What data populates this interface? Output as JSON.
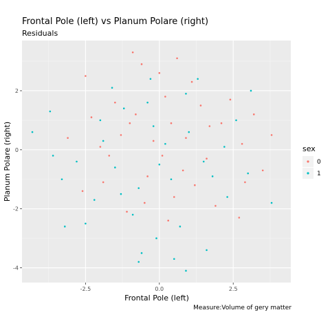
{
  "chart_data": {
    "type": "scatter",
    "title": "Frontal Pole (left) vs Planum Polare (right)",
    "subtitle": "Residuals",
    "xlabel": "Frontal Pole (left)",
    "ylabel": "Planum Polare (right)",
    "caption": "Measure:Volume of gery matter",
    "xlim": [
      -4.65,
      4.45
    ],
    "ylim": [
      -4.5,
      3.7
    ],
    "x_ticks": [
      -2.5,
      0.0,
      2.5
    ],
    "x_tick_labels": [
      "-2.5",
      "0.0",
      "2.5"
    ],
    "y_ticks": [
      -4,
      -2,
      0,
      2
    ],
    "y_tick_labels": [
      "-4",
      "-2",
      "0",
      "2"
    ],
    "grid": true,
    "legend": {
      "title": "sex",
      "position": "right",
      "entries": [
        {
          "label": "0",
          "color": "#F8766D"
        },
        {
          "label": "1",
          "color": "#00BFC4"
        }
      ]
    },
    "series": [
      {
        "name": "0",
        "color": "#F8766D",
        "points": [
          [
            -1.3,
            0.5
          ],
          [
            -0.8,
            1.2
          ],
          [
            0.2,
            1.8
          ],
          [
            0.9,
            0.4
          ],
          [
            1.6,
            -0.3
          ],
          [
            -0.4,
            -0.9
          ],
          [
            0.5,
            -1.6
          ],
          [
            -1.7,
            -0.2
          ],
          [
            2.1,
            0.9
          ],
          [
            -2.3,
            1.1
          ],
          [
            0.0,
            2.6
          ],
          [
            1.1,
            2.3
          ],
          [
            -0.6,
            2.9
          ],
          [
            2.8,
            0.2
          ],
          [
            -2.6,
            -1.4
          ],
          [
            1.9,
            -1.9
          ],
          [
            0.3,
            -2.4
          ],
          [
            -1.1,
            -2.1
          ],
          [
            3.2,
            1.2
          ],
          [
            -3.1,
            0.4
          ],
          [
            3.5,
            -0.7
          ],
          [
            2.7,
            -2.3
          ],
          [
            -0.9,
            3.3
          ],
          [
            0.6,
            3.1
          ],
          [
            -2.5,
            2.5
          ],
          [
            1.4,
            1.5
          ],
          [
            -1.5,
            1.6
          ],
          [
            0.8,
            -0.7
          ],
          [
            -0.2,
            0.3
          ],
          [
            0.4,
            0.9
          ],
          [
            -2.0,
            0.1
          ],
          [
            2.4,
            1.7
          ],
          [
            -1.9,
            -1.1
          ],
          [
            1.2,
            -1.2
          ],
          [
            2.9,
            -1.1
          ],
          [
            -0.5,
            -1.8
          ],
          [
            0.1,
            -0.2
          ],
          [
            1.7,
            0.8
          ],
          [
            -1.0,
            0.9
          ],
          [
            3.8,
            0.5
          ]
        ]
      },
      {
        "name": "1",
        "color": "#00BFC4",
        "points": [
          [
            -1.5,
            -0.6
          ],
          [
            -0.7,
            -1.3
          ],
          [
            0.4,
            -1.0
          ],
          [
            1.0,
            0.6
          ],
          [
            -0.2,
            0.8
          ],
          [
            -1.9,
            0.3
          ],
          [
            1.5,
            -0.4
          ],
          [
            -0.9,
            -2.2
          ],
          [
            0.7,
            -2.6
          ],
          [
            -2.2,
            -1.7
          ],
          [
            -2.8,
            -0.4
          ],
          [
            2.2,
            0.1
          ],
          [
            -0.1,
            -3.0
          ],
          [
            -1.2,
            1.4
          ],
          [
            0.9,
            1.9
          ],
          [
            -3.3,
            -1.0
          ],
          [
            -3.6,
            -0.2
          ],
          [
            -4.3,
            0.6
          ],
          [
            -3.7,
            1.3
          ],
          [
            -3.2,
            -2.6
          ],
          [
            -0.6,
            -3.5
          ],
          [
            0.5,
            -3.7
          ],
          [
            1.6,
            -3.4
          ],
          [
            0.9,
            -4.1
          ],
          [
            -0.7,
            -3.8
          ],
          [
            3.0,
            -0.8
          ],
          [
            3.8,
            -1.8
          ],
          [
            -2.5,
            -2.5
          ],
          [
            2.3,
            -1.6
          ],
          [
            -1.6,
            2.1
          ],
          [
            1.3,
            2.4
          ],
          [
            0.0,
            -0.5
          ],
          [
            -0.4,
            1.6
          ],
          [
            0.2,
            0.2
          ],
          [
            1.8,
            -0.9
          ],
          [
            -1.3,
            -1.5
          ],
          [
            -2.0,
            1.0
          ],
          [
            2.6,
            1.0
          ],
          [
            -0.3,
            2.4
          ],
          [
            3.1,
            2.0
          ]
        ]
      }
    ]
  }
}
